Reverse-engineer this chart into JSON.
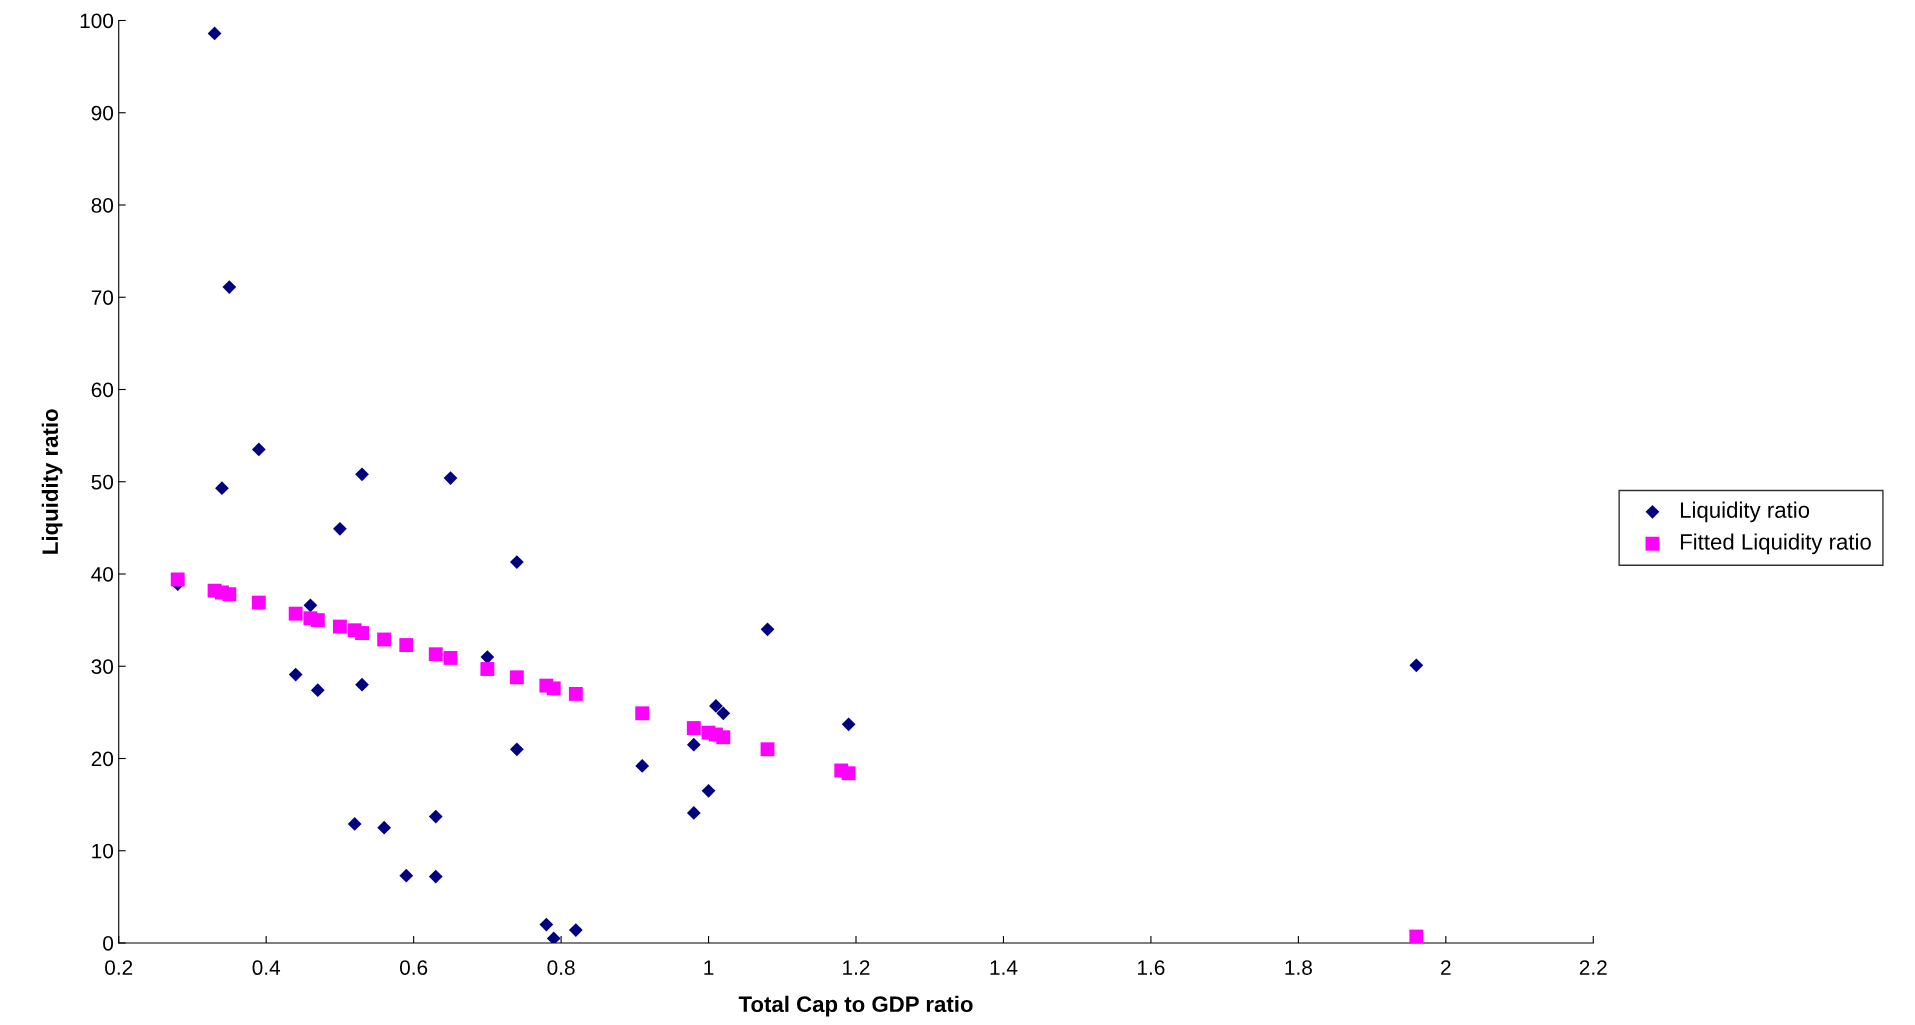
{
  "chart_data": {
    "type": "scatter",
    "xlabel": "Total Cap to GDP ratio",
    "ylabel": "Liquidity ratio",
    "xlim": [
      0.2,
      2.2
    ],
    "xticks": [
      0.2,
      0.4,
      0.6,
      0.8,
      1,
      1.2,
      1.4,
      1.6,
      1.8,
      2,
      2.2
    ],
    "ylim": [
      0,
      100
    ],
    "yticks": [
      0,
      10,
      20,
      30,
      40,
      50,
      60,
      70,
      80,
      90,
      100
    ],
    "grid": false,
    "legend": "right",
    "series": [
      {
        "name": "Liquidity ratio",
        "color": "#000080",
        "marker": "diamond",
        "x": [
          0.33,
          0.35,
          0.39,
          0.34,
          0.53,
          0.65,
          0.5,
          0.74,
          0.28,
          0.46,
          0.44,
          0.47,
          0.53,
          0.7,
          1.08,
          1.96,
          1.01,
          1.02,
          1.19,
          0.98,
          0.74,
          0.91,
          1.0,
          0.98,
          0.63,
          0.52,
          0.56,
          0.59,
          0.63,
          0.78,
          0.82,
          0.79
        ],
        "values": [
          98.6,
          71.1,
          53.5,
          49.3,
          50.8,
          50.4,
          44.9,
          41.3,
          38.9,
          36.6,
          29.1,
          27.4,
          28.0,
          31.0,
          34.0,
          30.1,
          25.7,
          24.9,
          23.7,
          21.5,
          21.0,
          19.2,
          16.5,
          14.1,
          13.7,
          12.9,
          12.5,
          7.3,
          7.2,
          2.0,
          1.4,
          0.5
        ]
      },
      {
        "name": "Fitted Liquidity ratio",
        "color": "#ff00ff",
        "marker": "square",
        "x": [
          0.28,
          0.33,
          0.34,
          0.35,
          0.39,
          0.44,
          0.46,
          0.47,
          0.5,
          0.52,
          0.53,
          0.56,
          0.59,
          0.63,
          0.65,
          0.7,
          0.74,
          0.78,
          0.79,
          0.82,
          0.91,
          0.98,
          1.0,
          1.01,
          1.02,
          1.08,
          1.18,
          1.19,
          1.96
        ],
        "values": [
          39.4,
          38.2,
          38.0,
          37.8,
          36.9,
          35.7,
          35.2,
          35.0,
          34.3,
          33.9,
          33.6,
          32.9,
          32.3,
          31.3,
          30.9,
          29.7,
          28.8,
          27.9,
          27.6,
          27.0,
          24.9,
          23.3,
          22.8,
          22.6,
          22.3,
          21.0,
          18.7,
          18.4,
          0.7
        ]
      }
    ]
  }
}
